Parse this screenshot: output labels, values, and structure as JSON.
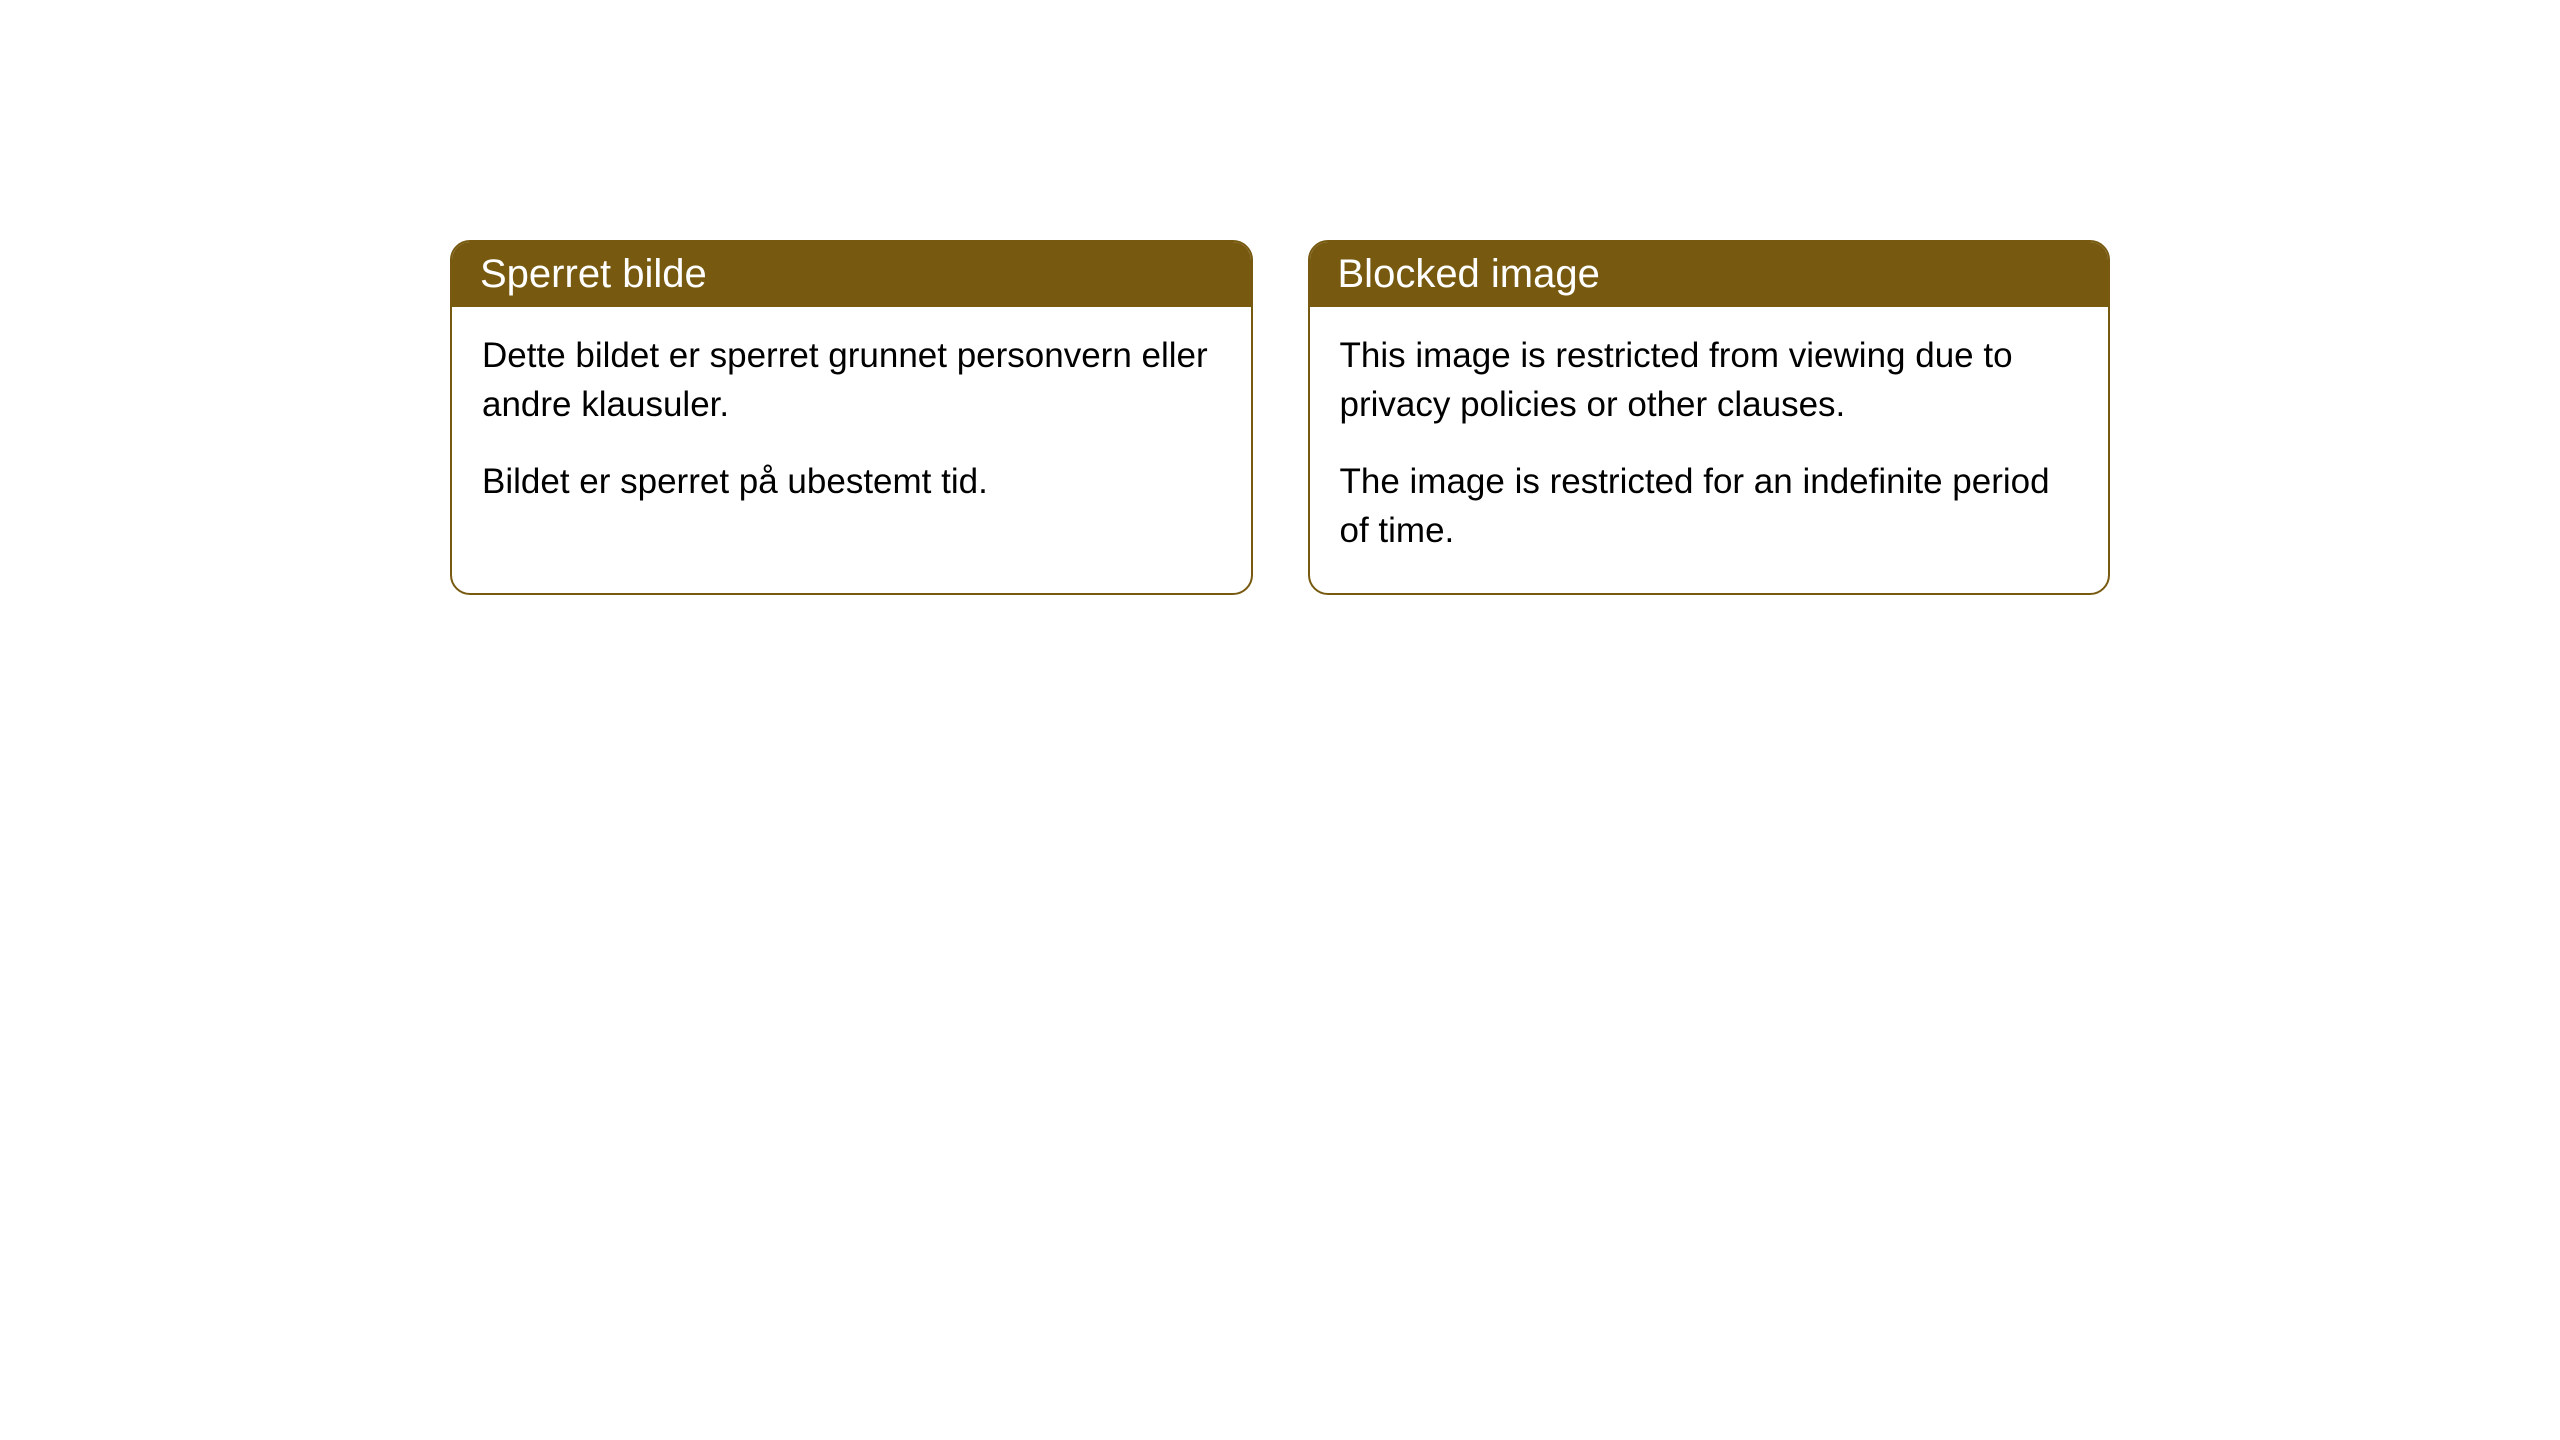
{
  "cards": [
    {
      "title": "Sperret bilde",
      "paragraph1": "Dette bildet er sperret grunnet personvern eller andre klausuler.",
      "paragraph2": "Bildet er sperret på ubestemt tid."
    },
    {
      "title": "Blocked image",
      "paragraph1": "This image is restricted from viewing due to privacy policies or other clauses.",
      "paragraph2": "The image is restricted for an indefinite period of time."
    }
  ],
  "styling": {
    "header_background_color": "#775a10",
    "header_text_color": "#ffffff",
    "border_color": "#775a10",
    "body_background_color": "#ffffff",
    "body_text_color": "#000000",
    "border_radius": 20,
    "title_fontsize": 40,
    "body_fontsize": 35
  }
}
